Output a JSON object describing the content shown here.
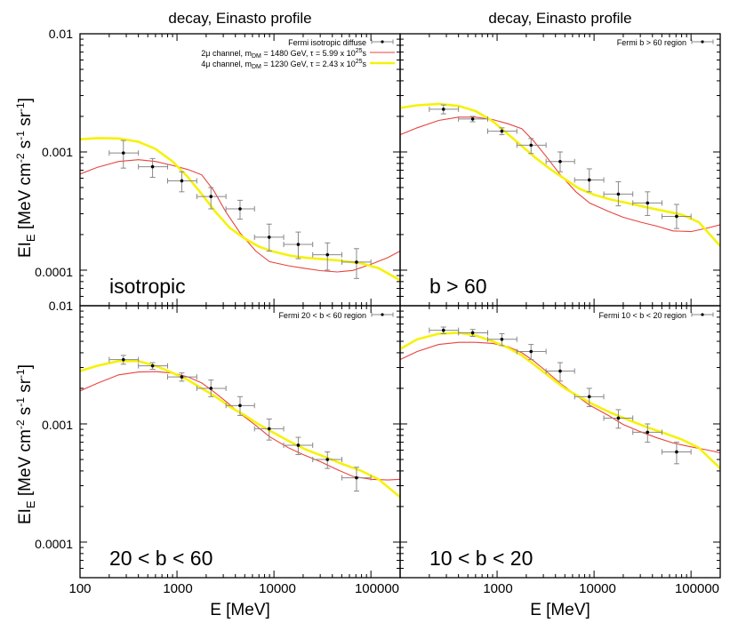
{
  "figure": {
    "colors": {
      "data": "#000000",
      "errorbar": "#888888",
      "channel_2mu": "#e8433e",
      "channel_4mu": "#f5f20a"
    },
    "y_axis_label": {
      "main": "EI",
      "sub": "E",
      "units_pre": " [MeV cm",
      "exp1": "-2",
      "units_mid": " s",
      "exp2": "-1",
      "units_mid2": " sr",
      "exp3": "-1",
      "units_post": "]"
    },
    "x_axis_label": "E [MeV]",
    "x_tick_labels": [
      "100",
      "1000",
      "10000",
      "100000"
    ],
    "y_tick_labels": [
      "0.0001",
      "0.001",
      "0.01"
    ]
  },
  "chart_data": [
    {
      "type": "scatter",
      "title": "decay, Einasto profile",
      "region_label": "isotropic",
      "xscale": "log",
      "yscale": "log",
      "xlim": [
        100,
        200000
      ],
      "ylim": [
        5e-05,
        0.01
      ],
      "legend_position": "top-right",
      "legend": [
        {
          "text": "Fermi isotropic diffuse",
          "kind": "data"
        },
        {
          "text_parts": [
            "2μ channel, m",
            "DM",
            " = 1480 GeV, τ = 5.99 x 10",
            "25",
            "s"
          ],
          "kind": "channel_2mu"
        },
        {
          "text_parts": [
            "4μ channel, m",
            "DM",
            " = 1230 GeV, τ = 2.43 x 10",
            "25",
            "s"
          ],
          "kind": "channel_4mu"
        }
      ],
      "series": [
        {
          "kind": "data",
          "x": [
            280,
            560,
            1120,
            2240,
            4470,
            8930,
            17800,
            35600,
            71000
          ],
          "y": [
            0.00098,
            0.00075,
            0.00057,
            0.00042,
            0.00033,
            0.00019,
            0.000165,
            0.000135,
            0.000117
          ],
          "yerr_lo": [
            0.00073,
            0.00061,
            0.00046,
            0.00033,
            0.00027,
            0.000145,
            0.000125,
            0.0001,
            8.5e-05
          ],
          "yerr_hi": [
            0.00125,
            0.00088,
            0.00068,
            0.0005,
            0.00039,
            0.000245,
            0.00021,
            0.00017,
            0.000152
          ],
          "xerr_lo": [
            200,
            400,
            800,
            1600,
            3200,
            6300,
            12600,
            25100,
            50200
          ],
          "xerr_hi": [
            400,
            800,
            1600,
            3200,
            6300,
            12600,
            25100,
            50200,
            100000
          ]
        },
        {
          "kind": "channel_2mu",
          "x": [
            100,
            150,
            250,
            400,
            600,
            900,
            1300,
            1800,
            2400,
            3200,
            4500,
            6500,
            9000,
            14000,
            20000,
            30000,
            45000,
            65000,
            100000,
            150000,
            200000
          ],
          "y": [
            0.00065,
            0.00074,
            0.00083,
            0.00086,
            0.00083,
            0.00077,
            0.00071,
            0.00064,
            0.00047,
            0.00031,
            0.000205,
            0.000145,
            0.000118,
            0.000109,
            0.000104,
            9.9e-05,
            9.65e-05,
            9.95e-05,
            0.000112,
            0.000128,
            0.000145
          ]
        },
        {
          "kind": "channel_4mu",
          "x": [
            100,
            150,
            250,
            400,
            600,
            900,
            1300,
            1800,
            2500,
            3500,
            5000,
            7000,
            10000,
            15000,
            22000,
            35000,
            50000,
            80000,
            120000,
            200000
          ],
          "y": [
            0.00128,
            0.00131,
            0.0013,
            0.00122,
            0.00106,
            0.00083,
            0.00061,
            0.00044,
            0.00031,
            0.000228,
            0.000185,
            0.000158,
            0.000143,
            0.000132,
            0.000127,
            0.000123,
            0.00012,
            0.000114,
            0.000104,
            8.2e-05
          ]
        }
      ]
    },
    {
      "type": "scatter",
      "title": "decay, Einasto profile",
      "region_label": "b > 60",
      "xscale": "log",
      "yscale": "log",
      "xlim": [
        100,
        200000
      ],
      "ylim": [
        5e-05,
        0.01
      ],
      "legend_position": "top-right",
      "legend": [
        {
          "text": "Fermi b > 60 region",
          "kind": "data"
        }
      ],
      "series": [
        {
          "kind": "data",
          "x": [
            280,
            560,
            1120,
            2240,
            4470,
            8930,
            17800,
            35600,
            71000
          ],
          "y": [
            0.0023,
            0.0019,
            0.0015,
            0.00114,
            0.00083,
            0.00058,
            0.00044,
            0.00037,
            0.000285
          ],
          "yerr_lo": [
            0.0021,
            0.0018,
            0.0014,
            0.00097,
            0.00068,
            0.00046,
            0.00035,
            0.00029,
            0.000225
          ],
          "yerr_hi": [
            0.0025,
            0.002,
            0.0016,
            0.0013,
            0.001,
            0.00072,
            0.00056,
            0.00046,
            0.00036
          ],
          "xerr_lo": [
            200,
            400,
            800,
            1600,
            3200,
            6300,
            12600,
            25100,
            50200
          ],
          "xerr_hi": [
            400,
            800,
            1600,
            3200,
            6300,
            12600,
            25100,
            50200,
            100000
          ]
        },
        {
          "kind": "channel_2mu",
          "x": [
            100,
            150,
            250,
            400,
            600,
            900,
            1300,
            1800,
            2400,
            3200,
            4500,
            6500,
            9000,
            14000,
            20000,
            30000,
            45000,
            65000,
            100000,
            150000,
            200000
          ],
          "y": [
            0.0014,
            0.0016,
            0.00185,
            0.00197,
            0.00197,
            0.00188,
            0.00173,
            0.00157,
            0.00123,
            0.00092,
            0.00064,
            0.00046,
            0.00037,
            0.000315,
            0.00028,
            0.000255,
            0.000235,
            0.000215,
            0.000212,
            0.000228,
            0.000242
          ]
        },
        {
          "kind": "channel_4mu",
          "x": [
            100,
            150,
            250,
            400,
            600,
            900,
            1300,
            1800,
            2500,
            3500,
            5000,
            7000,
            10000,
            15000,
            22000,
            35000,
            50000,
            80000,
            120000,
            200000
          ],
          "y": [
            0.00236,
            0.00248,
            0.00255,
            0.00245,
            0.00222,
            0.00182,
            0.00141,
            0.00112,
            0.00089,
            0.00072,
            0.00059,
            0.00049,
            0.000435,
            0.000395,
            0.00037,
            0.00034,
            0.00032,
            0.000295,
            0.000255,
            0.00016
          ]
        }
      ]
    },
    {
      "type": "scatter",
      "title": "",
      "region_label": "20 < b < 60",
      "xscale": "log",
      "yscale": "log",
      "xlim": [
        100,
        200000
      ],
      "ylim": [
        5e-05,
        0.01
      ],
      "legend_position": "top-right",
      "legend": [
        {
          "text": "Fermi 20 < b < 60 region",
          "kind": "data"
        }
      ],
      "series": [
        {
          "kind": "data",
          "x": [
            280,
            560,
            1120,
            2240,
            4470,
            8930,
            17800,
            35600,
            71000
          ],
          "y": [
            0.0035,
            0.0031,
            0.0025,
            0.002,
            0.00143,
            0.00091,
            0.00066,
            0.0005,
            0.00035
          ],
          "yerr_lo": [
            0.0032,
            0.0029,
            0.0023,
            0.0017,
            0.00118,
            0.00073,
            0.00055,
            0.00042,
            0.00027
          ],
          "yerr_hi": [
            0.0038,
            0.0033,
            0.0027,
            0.00235,
            0.0017,
            0.0011,
            0.00077,
            0.00058,
            0.00043
          ],
          "xerr_lo": [
            200,
            400,
            800,
            1600,
            3200,
            6300,
            12600,
            25100,
            50200
          ],
          "xerr_hi": [
            400,
            800,
            1600,
            3200,
            6300,
            12600,
            25100,
            50200,
            100000
          ]
        },
        {
          "kind": "channel_2mu",
          "x": [
            100,
            150,
            250,
            400,
            600,
            900,
            1300,
            1800,
            2400,
            3200,
            4500,
            6500,
            9000,
            14000,
            20000,
            30000,
            45000,
            65000,
            100000,
            150000,
            200000
          ],
          "y": [
            0.0019,
            0.0022,
            0.0026,
            0.00275,
            0.00277,
            0.00269,
            0.0025,
            0.00222,
            0.00187,
            0.00155,
            0.00122,
            0.00097,
            0.00078,
            0.00063,
            0.00055,
            0.00048,
            0.00041,
            0.00036,
            0.00034,
            0.000335,
            0.00034
          ]
        },
        {
          "kind": "channel_4mu",
          "x": [
            100,
            150,
            250,
            400,
            600,
            900,
            1300,
            1800,
            2500,
            3500,
            5000,
            7000,
            10000,
            15000,
            22000,
            35000,
            50000,
            80000,
            120000,
            200000
          ],
          "y": [
            0.0028,
            0.0031,
            0.0034,
            0.0034,
            0.0031,
            0.0027,
            0.00235,
            0.002,
            0.0017,
            0.0014,
            0.00118,
            0.00099,
            0.00084,
            0.0007,
            0.0006,
            0.00052,
            0.00046,
            0.0004,
            0.00034,
            0.00024
          ]
        }
      ]
    },
    {
      "type": "scatter",
      "title": "",
      "region_label": "10 < b < 20",
      "xscale": "log",
      "yscale": "log",
      "xlim": [
        100,
        200000
      ],
      "ylim": [
        5e-05,
        0.01
      ],
      "legend_position": "top-right",
      "legend": [
        {
          "text": "Fermi 10 < b < 20 region",
          "kind": "data"
        }
      ],
      "series": [
        {
          "kind": "data",
          "x": [
            280,
            560,
            1120,
            2240,
            4470,
            8930,
            17800,
            35600,
            71000
          ],
          "y": [
            0.0062,
            0.0059,
            0.0052,
            0.0041,
            0.0028,
            0.0017,
            0.00112,
            0.00085,
            0.00058
          ],
          "yerr_lo": [
            0.0058,
            0.0055,
            0.0046,
            0.0035,
            0.0023,
            0.0014,
            0.00092,
            0.0007,
            0.00046
          ],
          "yerr_hi": [
            0.0066,
            0.0063,
            0.0058,
            0.0047,
            0.0033,
            0.002,
            0.00132,
            0.001,
            0.0007
          ],
          "xerr_lo": [
            200,
            400,
            800,
            1600,
            3200,
            6300,
            12600,
            25100,
            50200
          ],
          "xerr_hi": [
            400,
            800,
            1600,
            3200,
            6300,
            12600,
            25100,
            50200,
            100000
          ]
        },
        {
          "kind": "channel_2mu",
          "x": [
            100,
            150,
            250,
            400,
            600,
            900,
            1300,
            1800,
            2400,
            3200,
            4500,
            6500,
            9000,
            14000,
            20000,
            30000,
            45000,
            65000,
            100000,
            150000,
            200000
          ],
          "y": [
            0.0035,
            0.0041,
            0.0047,
            0.0049,
            0.0049,
            0.0048,
            0.0045,
            0.004,
            0.0034,
            0.0028,
            0.0022,
            0.00175,
            0.00144,
            0.00118,
            0.00099,
            0.00086,
            0.00076,
            0.00069,
            0.00064,
            0.0006,
            0.00057
          ]
        },
        {
          "kind": "channel_4mu",
          "x": [
            100,
            150,
            250,
            400,
            600,
            900,
            1300,
            1800,
            2500,
            3500,
            5000,
            7000,
            10000,
            15000,
            22000,
            35000,
            50000,
            80000,
            120000,
            200000
          ],
          "y": [
            0.0043,
            0.0052,
            0.0058,
            0.0059,
            0.0056,
            0.005,
            0.0044,
            0.0038,
            0.0031,
            0.0025,
            0.002,
            0.0017,
            0.00145,
            0.00124,
            0.00109,
            0.00094,
            0.00085,
            0.00074,
            0.00063,
            0.00042
          ]
        }
      ]
    }
  ]
}
